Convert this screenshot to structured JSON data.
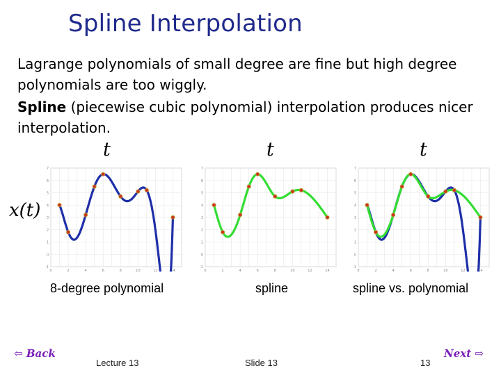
{
  "slide": {
    "title": "Spline Interpolation",
    "para1": "Lagrange polynomials of small degree are fine but high degree polynomials are too wiggly.",
    "para2_bold": "Spline",
    "para2_rest": " (piecewise cubic polynomial) interpolation produces nicer interpolation.",
    "t_label": "t",
    "x_label": "x(t)",
    "captions": [
      "8-degree polynomial",
      "spline",
      "spline vs. polynomial"
    ],
    "footer": {
      "lecture": "Lecture 13",
      "slide": "Slide 13",
      "page": "13"
    },
    "nav": {
      "back": "Back",
      "next": "Next"
    }
  },
  "colors": {
    "title": "#1f2a8c",
    "polynomial": "#1f2fa8",
    "spline": "#33dd33",
    "point_fill": "#cc3322",
    "nav": "#7a1fb8"
  },
  "chart_data": [
    {
      "type": "line",
      "name": "8-degree polynomial",
      "points": [
        [
          1,
          4
        ],
        [
          2,
          1.8
        ],
        [
          4,
          3.2
        ],
        [
          5,
          5.5
        ],
        [
          6,
          6.5
        ],
        [
          8,
          4.7
        ],
        [
          10,
          5.1
        ],
        [
          11,
          5.2
        ],
        [
          14,
          3
        ]
      ],
      "curve": "polynomial",
      "xlim": [
        0,
        15
      ],
      "ylim": [
        -1,
        7
      ],
      "grid": true
    },
    {
      "type": "line",
      "name": "spline",
      "points": [
        [
          1,
          4
        ],
        [
          2,
          1.8
        ],
        [
          4,
          3.2
        ],
        [
          5,
          5.5
        ],
        [
          6,
          6.5
        ],
        [
          8,
          4.7
        ],
        [
          10,
          5.1
        ],
        [
          11,
          5.2
        ],
        [
          14,
          3
        ]
      ],
      "curve": "spline",
      "xlim": [
        0,
        15
      ],
      "ylim": [
        -1,
        7
      ],
      "grid": true
    },
    {
      "type": "line",
      "name": "spline vs. polynomial",
      "points": [
        [
          1,
          4
        ],
        [
          2,
          1.8
        ],
        [
          4,
          3.2
        ],
        [
          5,
          5.5
        ],
        [
          6,
          6.5
        ],
        [
          8,
          4.7
        ],
        [
          10,
          5.1
        ],
        [
          11,
          5.2
        ],
        [
          14,
          3
        ]
      ],
      "curve": "both",
      "xlim": [
        0,
        15
      ],
      "ylim": [
        -1,
        7
      ],
      "grid": true
    }
  ]
}
